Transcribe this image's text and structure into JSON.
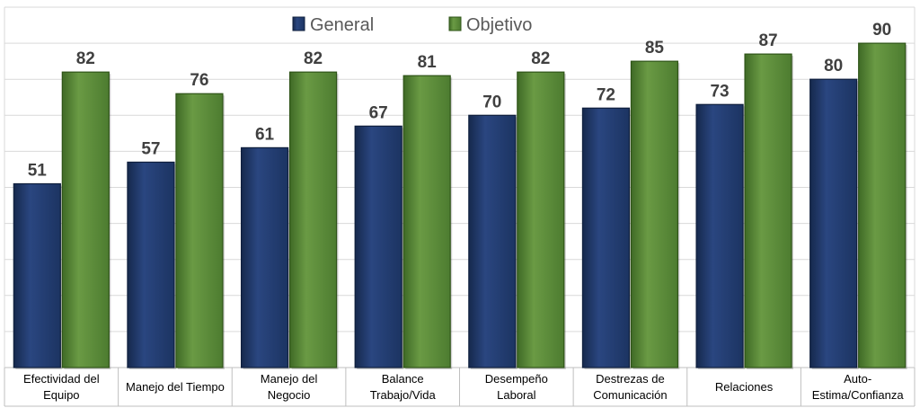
{
  "chart_data": {
    "type": "bar",
    "title": "",
    "xlabel": "",
    "ylabel": "",
    "ylim": [
      0,
      100
    ],
    "grid": true,
    "legend_position": "top-center",
    "categories": [
      [
        "Efectividad del",
        "Equipo"
      ],
      [
        "Manejo del Tiempo"
      ],
      [
        "Manejo del",
        "Negocio"
      ],
      [
        "Balance",
        "Trabajo/Vida"
      ],
      [
        "Desempeño",
        "Laboral"
      ],
      [
        "Destrezas de",
        "Comunicación"
      ],
      [
        "Relaciones"
      ],
      [
        "Auto-",
        "Estima/Confianza"
      ]
    ],
    "series": [
      {
        "name": "General",
        "color": "#1f3864",
        "values": [
          51,
          57,
          61,
          67,
          70,
          72,
          73,
          80
        ]
      },
      {
        "name": "Objetivo",
        "color": "#548235",
        "values": [
          82,
          76,
          82,
          81,
          82,
          85,
          87,
          90
        ]
      }
    ]
  }
}
